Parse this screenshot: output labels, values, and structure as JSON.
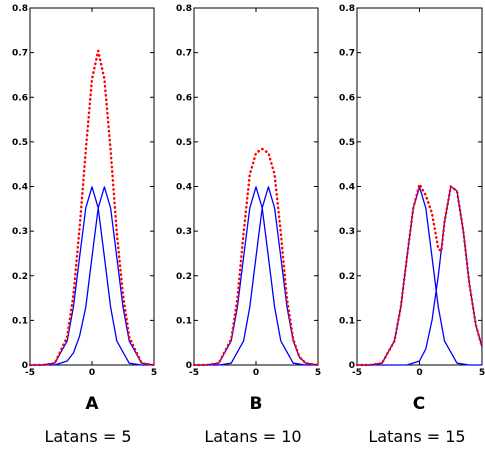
{
  "chart_data": [
    {
      "type": "line",
      "panel_label": "A",
      "caption": "Latans = 5",
      "xlim": [
        -5,
        5
      ],
      "ylim": [
        0,
        0.8
      ],
      "xticks": [
        -5,
        0,
        5
      ],
      "yticks": [
        0,
        0.1,
        0.2,
        0.3,
        0.4,
        0.5,
        0.6,
        0.7,
        0.8
      ],
      "ytick_labels": [
        "0",
        "0.1",
        "0.2",
        "0.3",
        "0.4",
        "0.5",
        "0.6",
        "0.7",
        "0.8"
      ],
      "grid": false,
      "series": [
        {
          "style": "solid",
          "color": "#0000ff",
          "x": [
            -5,
            -4,
            -3,
            -2,
            -1.5,
            -1,
            -0.5,
            0,
            0.5,
            1,
            1.5,
            2,
            3,
            4,
            5
          ],
          "y": [
            0,
            0,
            0.004,
            0.054,
            0.13,
            0.242,
            0.352,
            0.399,
            0.352,
            0.242,
            0.13,
            0.054,
            0.004,
            0,
            0
          ]
        },
        {
          "style": "solid",
          "color": "#0000ff",
          "x": [
            -5,
            -4,
            -3,
            -2,
            -1.5,
            -1,
            -0.5,
            0,
            0.5,
            1,
            1.5,
            2,
            2.5,
            3,
            4,
            5
          ],
          "y": [
            0,
            0,
            0,
            0.009,
            0.027,
            0.065,
            0.13,
            0.242,
            0.352,
            0.399,
            0.352,
            0.242,
            0.13,
            0.054,
            0.004,
            0
          ]
        },
        {
          "style": "dotted",
          "color": "#ff0000",
          "x": [
            -5,
            -4,
            -3,
            -2,
            -1.5,
            -1,
            -0.5,
            0,
            0.5,
            1,
            1.5,
            2,
            2.5,
            3,
            4,
            5
          ],
          "y": [
            0,
            0,
            0.004,
            0.063,
            0.157,
            0.307,
            0.482,
            0.641,
            0.704,
            0.641,
            0.482,
            0.296,
            0.157,
            0.063,
            0.004,
            0
          ]
        }
      ]
    },
    {
      "type": "line",
      "panel_label": "B",
      "caption": "Latans = 10",
      "xlim": [
        -5,
        5
      ],
      "ylim": [
        0,
        0.8
      ],
      "xticks": [
        -5,
        0,
        5
      ],
      "yticks": [
        0,
        0.1,
        0.2,
        0.3,
        0.4,
        0.5,
        0.6,
        0.7,
        0.8
      ],
      "ytick_labels": [
        "0",
        "0.1",
        "0.2",
        "0.3",
        "0.4",
        "0.5",
        "0.6",
        "0.7",
        "0.8"
      ],
      "grid": false,
      "series": [
        {
          "style": "solid",
          "color": "#0000ff",
          "x": [
            -5,
            -4,
            -3,
            -2,
            -1.5,
            -1,
            -0.5,
            0,
            0.5,
            1,
            1.5,
            2,
            3,
            4,
            5
          ],
          "y": [
            0,
            0,
            0.004,
            0.054,
            0.13,
            0.242,
            0.352,
            0.399,
            0.352,
            0.242,
            0.13,
            0.054,
            0.004,
            0,
            0
          ]
        },
        {
          "style": "solid",
          "color": "#0000ff",
          "x": [
            -5,
            -4,
            -3,
            -2,
            -1,
            -0.5,
            0,
            0.5,
            1,
            1.5,
            2,
            2.5,
            3,
            3.5,
            4,
            5
          ],
          "y": [
            0,
            0,
            0,
            0.004,
            0.054,
            0.13,
            0.242,
            0.352,
            0.399,
            0.352,
            0.242,
            0.13,
            0.054,
            0.018,
            0.004,
            0
          ]
        },
        {
          "style": "dotted",
          "color": "#ff0000",
          "x": [
            -5,
            -4,
            -3,
            -2,
            -1.5,
            -1,
            -0.5,
            0,
            0.5,
            1,
            1.5,
            2,
            2.5,
            3,
            3.5,
            4,
            5
          ],
          "y": [
            0,
            0,
            0.004,
            0.058,
            0.148,
            0.296,
            0.427,
            0.475,
            0.484,
            0.475,
            0.427,
            0.296,
            0.148,
            0.058,
            0.018,
            0.004,
            0
          ]
        }
      ]
    },
    {
      "type": "line",
      "panel_label": "C",
      "caption": "Latans = 15",
      "xlim": [
        -5,
        5
      ],
      "ylim": [
        0,
        0.8
      ],
      "xticks": [
        -5,
        0,
        5
      ],
      "yticks": [
        0,
        0.1,
        0.2,
        0.3,
        0.4,
        0.5,
        0.6,
        0.7,
        0.8
      ],
      "ytick_labels": [
        "0",
        "0.1",
        "0.2",
        "0.3",
        "0.4",
        "0.5",
        "0.6",
        "0.7",
        "0.8"
      ],
      "grid": false,
      "series": [
        {
          "style": "solid",
          "color": "#0000ff",
          "x": [
            -5,
            -4,
            -3,
            -2,
            -1.5,
            -1,
            -0.5,
            0,
            0.5,
            1,
            1.5,
            2,
            3,
            4,
            5
          ],
          "y": [
            0,
            0,
            0.004,
            0.054,
            0.13,
            0.242,
            0.352,
            0.399,
            0.352,
            0.242,
            0.13,
            0.054,
            0.004,
            0,
            0
          ]
        },
        {
          "style": "solid",
          "color": "#0000ff",
          "x": [
            -5,
            -4,
            -3,
            -2,
            -1,
            0,
            0.5,
            1,
            1.5,
            2,
            2.5,
            3,
            3.5,
            4,
            4.5,
            5
          ],
          "y": [
            0,
            0,
            0,
            0,
            0,
            0.009,
            0.036,
            0.1,
            0.2,
            0.32,
            0.4,
            0.39,
            0.3,
            0.18,
            0.09,
            0.04
          ]
        },
        {
          "style": "dotted",
          "color": "#ff0000",
          "x": [
            -5,
            -4,
            -3,
            -2,
            -1.5,
            -1,
            -0.5,
            0,
            0.5,
            1,
            1.5,
            1.75,
            2,
            2.5,
            3,
            3.5,
            4,
            4.5,
            5
          ],
          "y": [
            0,
            0,
            0.004,
            0.054,
            0.13,
            0.242,
            0.352,
            0.405,
            0.38,
            0.34,
            0.26,
            0.255,
            0.32,
            0.4,
            0.39,
            0.3,
            0.18,
            0.09,
            0.04
          ]
        }
      ]
    }
  ]
}
